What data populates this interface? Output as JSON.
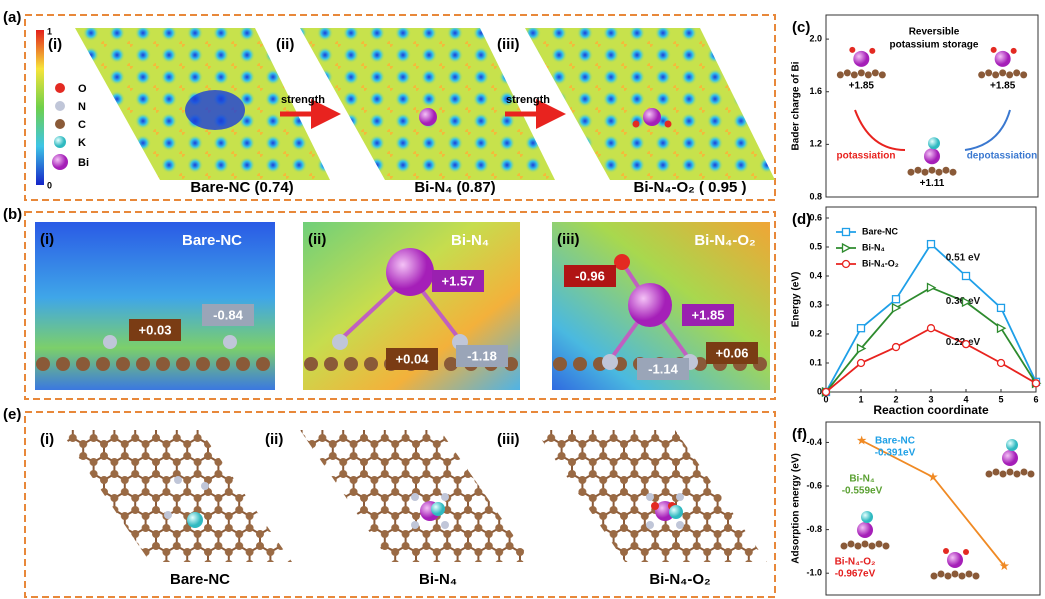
{
  "panels": {
    "a": {
      "label": "(a)",
      "sub": [
        "(i)",
        "(ii)",
        "(iii)"
      ],
      "legend": [
        "O",
        "N",
        "C",
        "K",
        "Bi"
      ],
      "colorbar": [
        "1",
        "0"
      ],
      "arrows": [
        "strength",
        "strength"
      ],
      "captions": [
        "Bare-NC (0.74)",
        "Bi-N₄ (0.87)",
        "Bi-N₄-O₂ ( 0.95 )"
      ]
    },
    "b": {
      "label": "(b)",
      "sub": [
        "(i)",
        "(ii)",
        "(iii)"
      ],
      "titles": [
        "Bare-NC",
        "Bi-N₄",
        "Bi-N₄-O₂"
      ],
      "charges": [
        [
          "+0.03",
          "-0.84"
        ],
        [
          "+1.57",
          "+0.04",
          "-1.18"
        ],
        [
          "-0.96",
          "+1.85",
          "+0.06",
          "-1.14"
        ]
      ]
    },
    "e": {
      "label": "(e)",
      "sub": [
        "(i)",
        "(ii)",
        "(iii)"
      ],
      "captions": [
        "Bare-NC",
        "Bi-N₄",
        "Bi-N₄-O₂"
      ]
    }
  },
  "chart_data": [
    {
      "type": "scatter",
      "panel_label": "(c)",
      "ylabel": "Bader charge of Bi",
      "annotations": [
        "Reversible",
        "potassium storage",
        "potassiation",
        "depotassiation"
      ],
      "categories": [
        null,
        null,
        null
      ],
      "values": [
        1.85,
        1.11,
        1.85
      ],
      "value_labels": [
        "+1.85",
        "+1.11",
        "+1.85"
      ],
      "ylim": [
        0.8,
        2.13
      ],
      "yticks": [
        0.8,
        1.2,
        1.6,
        {
          "value": 2,
          "label": "2.0"
        }
      ]
    },
    {
      "type": "line",
      "panel_label": "(d)",
      "xlabel": "Reaction coordinate",
      "ylabel": "Energy (eV)",
      "x": [
        0,
        1,
        2,
        3,
        4,
        5,
        6
      ],
      "xlim": [
        0,
        6
      ],
      "xticks": [
        0,
        1,
        2,
        3,
        4,
        5,
        6
      ],
      "ylim": [
        0,
        0.6
      ],
      "yticks": [
        0,
        0.1,
        0.2,
        0.3,
        0.4,
        0.5,
        0.6
      ],
      "series": [
        {
          "name": "Bare-NC",
          "color": "#1e9fe8",
          "marker": "square",
          "values": [
            0,
            0.22,
            0.32,
            0.51,
            0.4,
            0.29,
            0.035
          ],
          "value_labels": [
            null,
            null,
            null,
            "0.51 eV",
            null,
            null,
            null
          ]
        },
        {
          "name": "Bi-N₄",
          "color": "#2e8b2e",
          "marker": "triangle",
          "values": [
            0,
            0.15,
            0.29,
            0.36,
            0.31,
            0.22,
            0.03
          ],
          "value_labels": [
            null,
            null,
            null,
            "0.36 eV",
            null,
            null,
            null
          ]
        },
        {
          "name": "Bi-N₄-O₂",
          "color": "#e8231f",
          "marker": "circle",
          "values": [
            0,
            0.1,
            0.155,
            0.22,
            0.165,
            0.1,
            0.03
          ],
          "value_labels": [
            null,
            null,
            null,
            "0.22 eV",
            null,
            null,
            null
          ]
        }
      ]
    },
    {
      "type": "line",
      "panel_label": "(f)",
      "ylabel": "Adsorption energy (eV)",
      "categories": [
        null,
        null,
        null
      ],
      "point_names": [
        "Bare-NC",
        "Bi-N₄",
        "Bi-N₄-O₂"
      ],
      "label_colors": [
        "#1ea0e6",
        "#5aa032",
        "#e41e1e"
      ],
      "ylim": [
        -1.1,
        -0.32
      ],
      "yticks": [
        -0.4,
        -0.6,
        -0.8,
        {
          "value": -1,
          "label": "-1.0"
        }
      ],
      "series": [
        {
          "color": "#f08a24",
          "marker": "star",
          "values": [
            -0.391,
            -0.559,
            -0.967
          ],
          "value_labels": [
            "-0.391eV",
            "-0.559eV",
            "-0.967eV"
          ]
        }
      ]
    }
  ]
}
